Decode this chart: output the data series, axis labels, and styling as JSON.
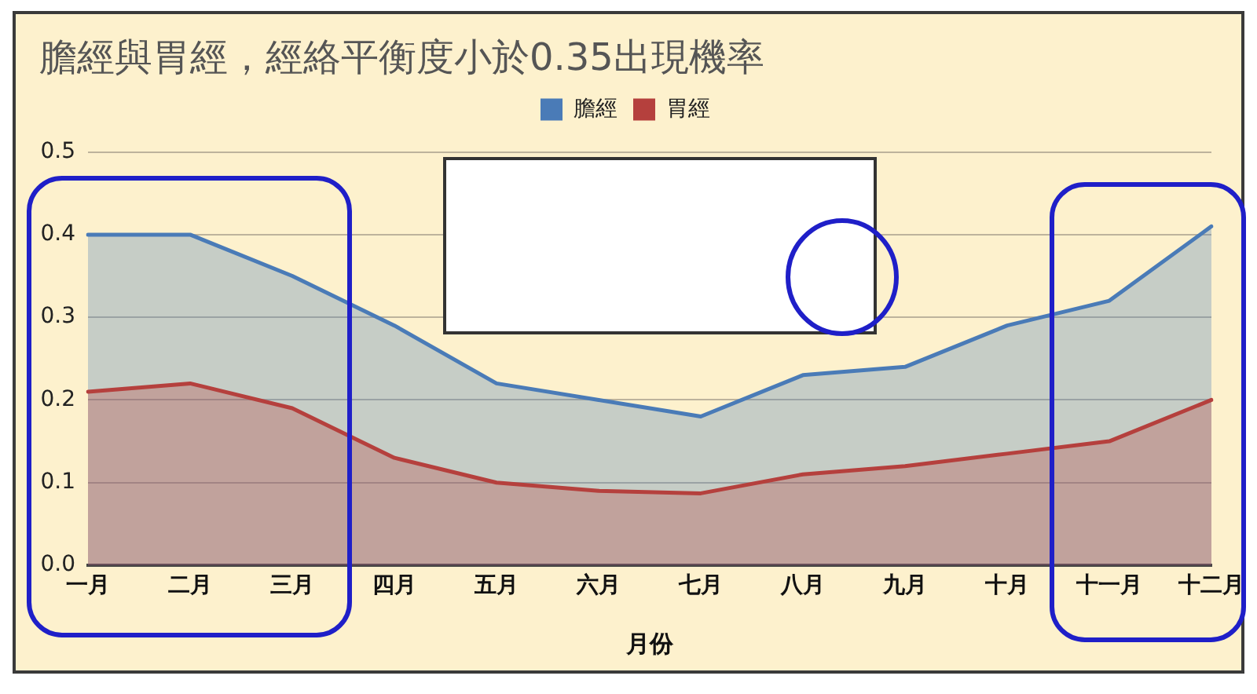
{
  "chart_data": {
    "type": "area",
    "title": "膽經與胃經，經絡平衡度小於0.35出現機率",
    "xlabel": "月份",
    "categories": [
      "一月",
      "二月",
      "三月",
      "四月",
      "五月",
      "六月",
      "七月",
      "八月",
      "九月",
      "十月",
      "十一月",
      "十二月"
    ],
    "series": [
      {
        "name": "膽經",
        "color": "#4a7bb7",
        "values": [
          0.4,
          0.4,
          0.35,
          0.29,
          0.22,
          0.2,
          0.18,
          0.23,
          0.24,
          0.29,
          0.32,
          0.41
        ]
      },
      {
        "name": "胃經",
        "color": "#b5403d",
        "values": [
          0.21,
          0.22,
          0.19,
          0.13,
          0.1,
          0.09,
          0.087,
          0.11,
          0.12,
          0.135,
          0.15,
          0.2
        ]
      }
    ],
    "ylim": [
      0,
      0.5
    ],
    "yticks": [
      {
        "value": 0,
        "label": "0.0"
      },
      0.1,
      0.2,
      0.3,
      0.4,
      0.5
    ],
    "grid": "y",
    "legend": "top",
    "marker": "none",
    "line_style": "solid"
  }
}
